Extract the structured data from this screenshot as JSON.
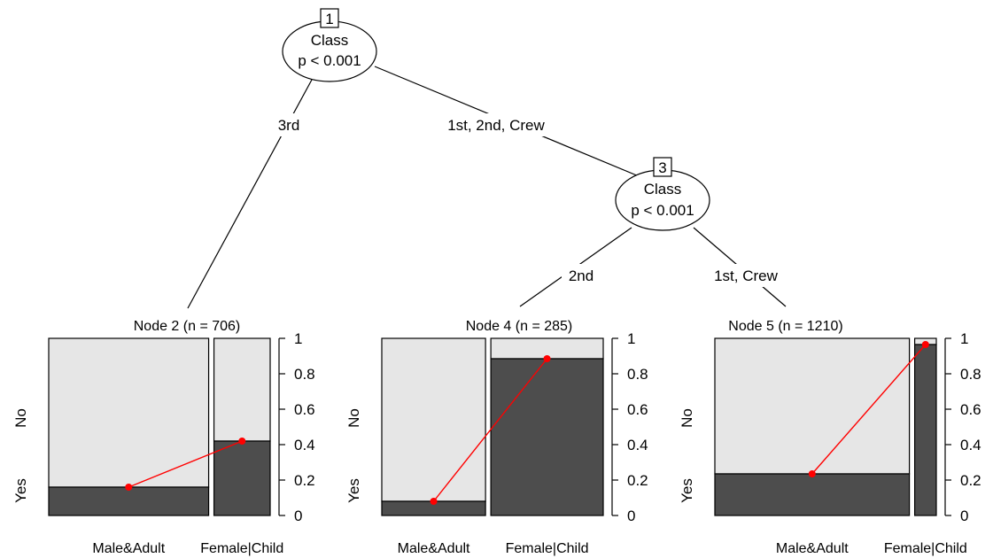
{
  "colors": {
    "yes_fill": "#4d4d4d",
    "no_fill": "#e6e6e6",
    "trend_line": "#ff0000",
    "outline": "#000000"
  },
  "inner_nodes": [
    {
      "id": "1",
      "variable": "Class",
      "pvalue": "p < 0.001"
    },
    {
      "id": "3",
      "variable": "Class",
      "pvalue": "p < 0.001"
    }
  ],
  "edge_labels": [
    "3rd",
    "1st, 2nd, Crew",
    "2nd",
    "1st, Crew"
  ],
  "terminal_nodes": [
    {
      "id": "2",
      "title": "Node 2 (n = 706)",
      "widths": [
        0.74,
        0.26
      ],
      "yes_props": [
        0.16,
        0.42
      ]
    },
    {
      "id": "4",
      "title": "Node 4 (n = 285)",
      "widths": [
        0.48,
        0.52
      ],
      "yes_props": [
        0.08,
        0.885
      ]
    },
    {
      "id": "5",
      "title": "Node 5 (n = 1210)",
      "widths": [
        0.9,
        0.1
      ],
      "yes_props": [
        0.235,
        0.965
      ]
    }
  ],
  "axis": {
    "ticks": [
      "0",
      "0.2",
      "0.4",
      "0.6",
      "0.8",
      "1"
    ],
    "tick_values": [
      0,
      0.2,
      0.4,
      0.6,
      0.8,
      1
    ],
    "y_labels": {
      "top": "No",
      "bottom": "Yes"
    },
    "x_labels": [
      "Male&Adult",
      "Female|Child"
    ]
  }
}
